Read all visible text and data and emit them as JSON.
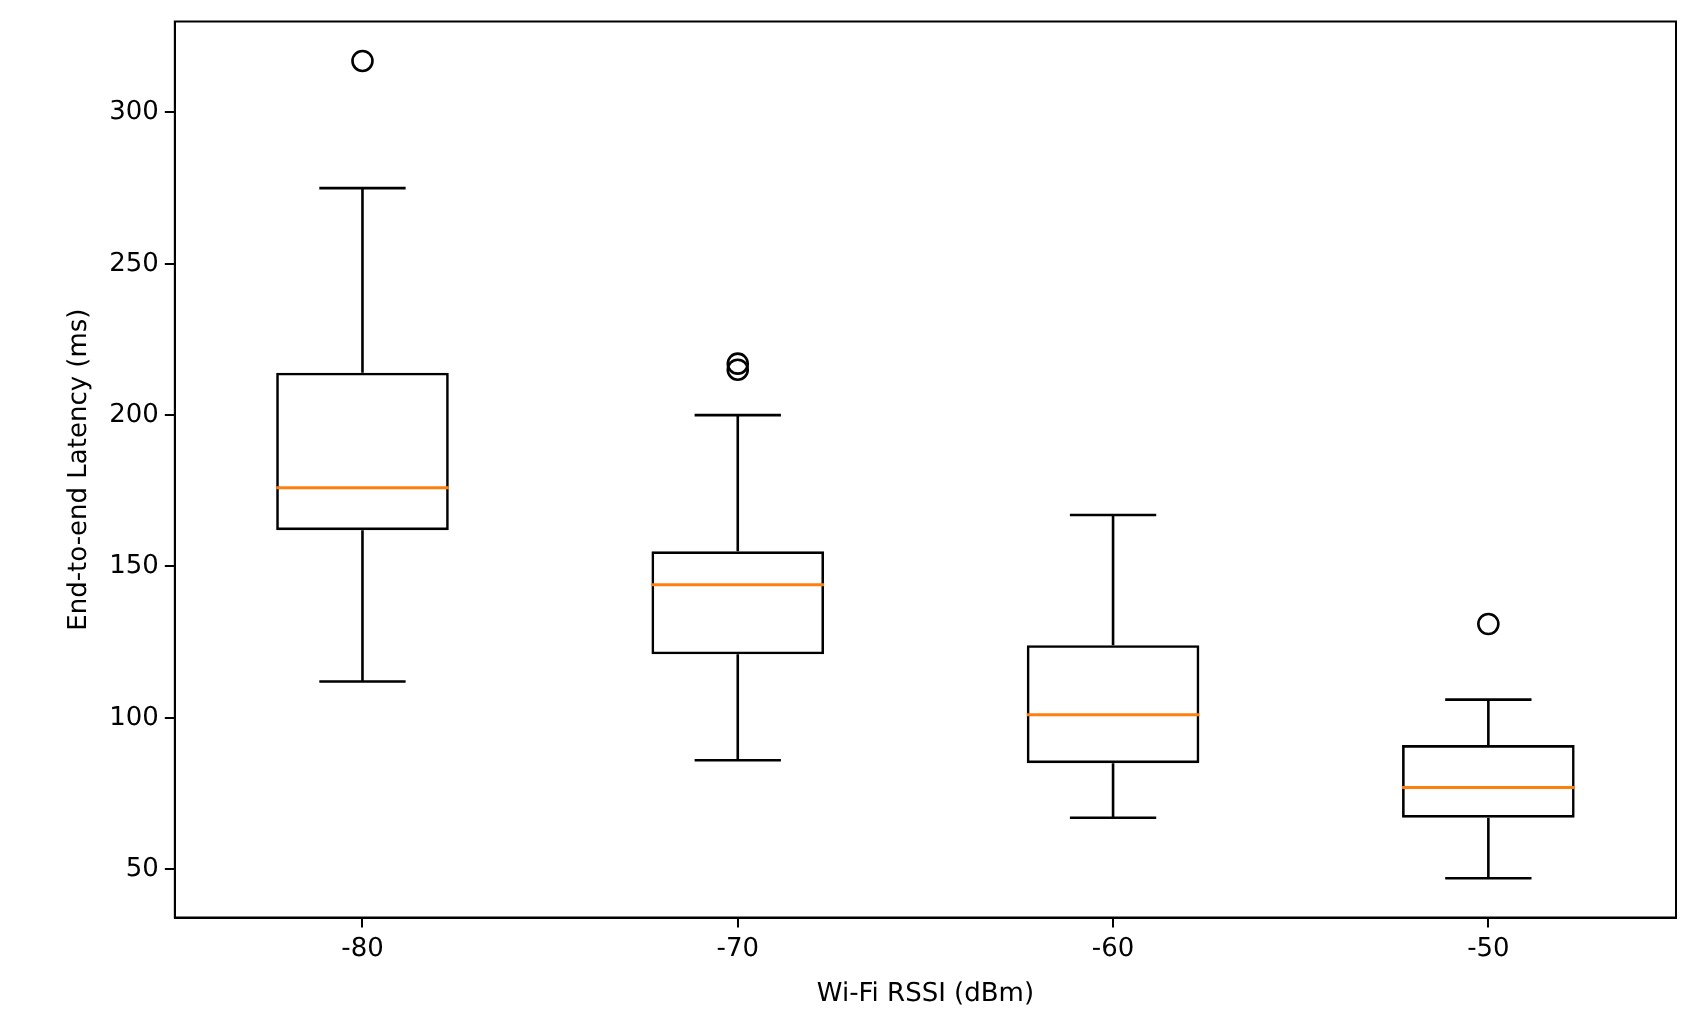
{
  "chart_data": {
    "type": "box",
    "xlabel": "Wi-Fi RSSI (dBm)",
    "ylabel": "End-to-end Latency (ms)",
    "categories": [
      "-80",
      "-70",
      "-60",
      "-50"
    ],
    "series": [
      {
        "color": "#000000",
        "boxes": [
          {
            "low": 112,
            "q1": 162,
            "median": 176,
            "q3": 214,
            "high": 275,
            "outliers": [
              317
            ]
          },
          {
            "low": 86,
            "q1": 121,
            "median": 144,
            "q3": 155,
            "high": 200,
            "outliers": [
              217,
              215
            ]
          },
          {
            "low": 67,
            "q1": 85,
            "median": 101,
            "q3": 124,
            "high": 167
          },
          {
            "low": 47,
            "q1": 67,
            "median": 77,
            "q3": 91,
            "high": 106,
            "outliers": [
              131
            ]
          }
        ]
      }
    ],
    "ylim": [
      34,
      330
    ],
    "yticks": [
      50,
      100,
      150,
      200,
      250,
      300
    ],
    "grid": false,
    "legend": false
  }
}
